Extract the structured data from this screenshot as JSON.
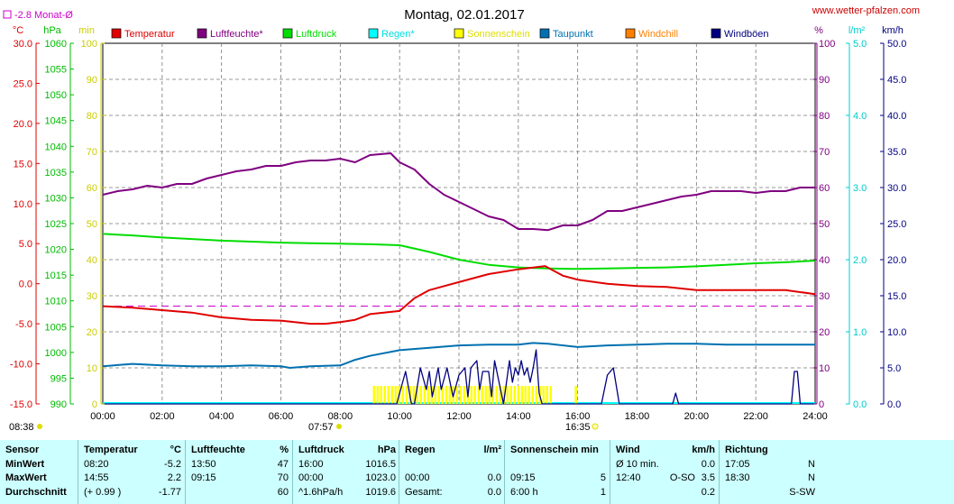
{
  "header": {
    "title": "Montag, 02.01.2017",
    "site": "www.wetter-pfalzen.com",
    "monthly_avg": "-2.8 Monat-Ø"
  },
  "units": {
    "temp": "°C",
    "pressure": "hPa",
    "minutes": "min",
    "percent": "%",
    "rain": "l/m²",
    "wind": "km/h"
  },
  "legend": [
    {
      "label": "Temperatur",
      "color": "#e00000"
    },
    {
      "label": "Luftfeuchte*",
      "color": "#800080"
    },
    {
      "label": "Luftdruck",
      "color": "#00dd00"
    },
    {
      "label": "Regen*",
      "color": "#00ffff"
    },
    {
      "label": "Sonnenschein",
      "color": "#ffff00"
    },
    {
      "label": "Taupunkt",
      "color": "#0070b0"
    },
    {
      "label": "Windchill",
      "color": "#ff8000"
    },
    {
      "label": "Windböen",
      "color": "#000080"
    }
  ],
  "sun_markers": {
    "sunrise_label": "08:38",
    "first_sun": "07:57",
    "sunset_label": "16:35"
  },
  "chart_data": {
    "type": "line",
    "x_ticks": [
      "00:00",
      "02:00",
      "04:00",
      "06:00",
      "08:00",
      "10:00",
      "12:00",
      "14:00",
      "16:00",
      "18:00",
      "20:00",
      "22:00",
      "24:00"
    ],
    "x_range_hours": [
      0,
      24
    ],
    "axes": {
      "temp": {
        "range": [
          -15,
          30
        ],
        "ticks": [
          "30.0",
          "25.0",
          "20.0",
          "15.0",
          "10.0",
          "5.0",
          "0.0",
          "-5.0",
          "-10.0",
          "-15.0"
        ]
      },
      "pressure": {
        "range": [
          990,
          1060
        ],
        "ticks": [
          "1060",
          "1055",
          "1050",
          "1045",
          "1040",
          "1035",
          "1030",
          "1025",
          "1020",
          "1015",
          "1010",
          "1005",
          "1000",
          "995",
          "990"
        ]
      },
      "minutes": {
        "range": [
          0,
          100
        ],
        "ticks": [
          "100",
          "90",
          "80",
          "70",
          "60",
          "50",
          "40",
          "30",
          "20",
          "10",
          "0"
        ]
      },
      "humidity": {
        "range": [
          0,
          100
        ],
        "ticks": [
          "100",
          "90",
          "80",
          "70",
          "60",
          "50",
          "40",
          "30",
          "20",
          "10",
          "0"
        ]
      },
      "rain": {
        "range": [
          0,
          5
        ],
        "ticks": [
          "5.0",
          "4.0",
          "3.0",
          "2.0",
          "1.0",
          "0.0"
        ]
      },
      "wind": {
        "range": [
          0,
          50
        ],
        "ticks": [
          "50.0",
          "45.0",
          "40.0",
          "35.0",
          "30.0",
          "25.0",
          "20.0",
          "15.0",
          "10.0",
          "5.0",
          "0.0"
        ]
      }
    },
    "monthly_avg_temp": -2.8,
    "series": [
      {
        "name": "Luftfeuchte*",
        "axis": "humidity",
        "color": "#800080",
        "points": [
          [
            0,
            58
          ],
          [
            0.5,
            59
          ],
          [
            1,
            59.5
          ],
          [
            1.5,
            60.5
          ],
          [
            2,
            60
          ],
          [
            2.5,
            61
          ],
          [
            3,
            61
          ],
          [
            3.5,
            62.5
          ],
          [
            4,
            63.5
          ],
          [
            4.5,
            64.5
          ],
          [
            5,
            65
          ],
          [
            5.5,
            66
          ],
          [
            6,
            66
          ],
          [
            6.5,
            67
          ],
          [
            7,
            67.5
          ],
          [
            7.5,
            67.5
          ],
          [
            8,
            68
          ],
          [
            8.5,
            67
          ],
          [
            9,
            69
          ],
          [
            9.7,
            69.5
          ],
          [
            10,
            67
          ],
          [
            10.5,
            65
          ],
          [
            11,
            61
          ],
          [
            11.5,
            58
          ],
          [
            12,
            56
          ],
          [
            12.5,
            54
          ],
          [
            13,
            52
          ],
          [
            13.5,
            51
          ],
          [
            14,
            48.5
          ],
          [
            14.5,
            48.5
          ],
          [
            15,
            48.2
          ],
          [
            15.5,
            49.5
          ],
          [
            16,
            49.5
          ],
          [
            16.5,
            51
          ],
          [
            17,
            53.5
          ],
          [
            17.5,
            53.5
          ],
          [
            18,
            54.5
          ],
          [
            18.5,
            55.5
          ],
          [
            19,
            56.5
          ],
          [
            19.5,
            57.5
          ],
          [
            20,
            58
          ],
          [
            20.5,
            59
          ],
          [
            21,
            59
          ],
          [
            21.5,
            59
          ],
          [
            22,
            58.5
          ],
          [
            22.5,
            59
          ],
          [
            23,
            59
          ],
          [
            23.5,
            60
          ],
          [
            24,
            60
          ]
        ]
      },
      {
        "name": "Luftdruck",
        "axis": "pressure",
        "color": "#00dd00",
        "points": [
          [
            0,
            1023
          ],
          [
            1,
            1022.7
          ],
          [
            2,
            1022.3
          ],
          [
            3,
            1022
          ],
          [
            4,
            1021.7
          ],
          [
            5,
            1021.5
          ],
          [
            6,
            1021.3
          ],
          [
            7,
            1021.2
          ],
          [
            8,
            1021.1
          ],
          [
            9,
            1021
          ],
          [
            10,
            1020.8
          ],
          [
            11,
            1019.5
          ],
          [
            12,
            1018
          ],
          [
            13,
            1017
          ],
          [
            14,
            1016.5
          ],
          [
            15,
            1016.3
          ],
          [
            16,
            1016.2
          ],
          [
            17,
            1016.3
          ],
          [
            18,
            1016.4
          ],
          [
            19,
            1016.5
          ],
          [
            20,
            1016.7
          ],
          [
            21,
            1017
          ],
          [
            22,
            1017.3
          ],
          [
            23,
            1017.5
          ],
          [
            24,
            1017.8
          ]
        ]
      },
      {
        "name": "Temperatur",
        "axis": "temp",
        "color": "#e00000",
        "points": [
          [
            0,
            -2.8
          ],
          [
            1,
            -3.0
          ],
          [
            2,
            -3.3
          ],
          [
            3,
            -3.6
          ],
          [
            4,
            -4.2
          ],
          [
            5,
            -4.5
          ],
          [
            6,
            -4.6
          ],
          [
            7,
            -5.0
          ],
          [
            7.5,
            -5.0
          ],
          [
            8,
            -4.8
          ],
          [
            8.5,
            -4.5
          ],
          [
            9,
            -3.8
          ],
          [
            10,
            -3.4
          ],
          [
            10.5,
            -1.8
          ],
          [
            11,
            -0.8
          ],
          [
            12,
            0.2
          ],
          [
            13,
            1.2
          ],
          [
            14,
            1.8
          ],
          [
            14.9,
            2.2
          ],
          [
            15.5,
            1.0
          ],
          [
            16,
            0.5
          ],
          [
            17,
            0.0
          ],
          [
            18,
            -0.3
          ],
          [
            19,
            -0.4
          ],
          [
            20,
            -0.8
          ],
          [
            21,
            -0.8
          ],
          [
            22,
            -0.8
          ],
          [
            23,
            -0.8
          ],
          [
            24,
            -1.3
          ]
        ]
      },
      {
        "name": "Taupunkt",
        "axis": "temp",
        "color": "#0070b0",
        "points": [
          [
            0,
            -10.3
          ],
          [
            1,
            -10.0
          ],
          [
            2,
            -10.2
          ],
          [
            3,
            -10.3
          ],
          [
            4,
            -10.3
          ],
          [
            5,
            -10.2
          ],
          [
            6,
            -10.3
          ],
          [
            6.3,
            -10.5
          ],
          [
            7,
            -10.3
          ],
          [
            8,
            -10.2
          ],
          [
            8.5,
            -9.5
          ],
          [
            9,
            -9.0
          ],
          [
            10,
            -8.3
          ],
          [
            11,
            -8.0
          ],
          [
            12,
            -7.7
          ],
          [
            13,
            -7.6
          ],
          [
            14,
            -7.6
          ],
          [
            14.5,
            -7.4
          ],
          [
            15,
            -7.5
          ],
          [
            16,
            -7.9
          ],
          [
            17,
            -7.7
          ],
          [
            18,
            -7.6
          ],
          [
            19,
            -7.5
          ],
          [
            20,
            -7.5
          ],
          [
            21,
            -7.6
          ],
          [
            22,
            -7.6
          ],
          [
            23,
            -7.6
          ],
          [
            24,
            -7.6
          ]
        ]
      }
    ],
    "sunshine_minutes": {
      "color": "#ffff00",
      "bars": [
        [
          9.1,
          15.1,
          5
        ],
        [
          15.9,
          16.0,
          5
        ]
      ]
    },
    "wind_gusts": {
      "axis": "wind",
      "color": "#000080",
      "points": [
        [
          0,
          0
        ],
        [
          9.9,
          0
        ],
        [
          10.0,
          1.5
        ],
        [
          10.2,
          4.5
        ],
        [
          10.4,
          0
        ],
        [
          10.5,
          0
        ],
        [
          10.7,
          5
        ],
        [
          10.9,
          2
        ],
        [
          11.0,
          4.5
        ],
        [
          11.1,
          1
        ],
        [
          11.3,
          5
        ],
        [
          11.4,
          2
        ],
        [
          11.6,
          5
        ],
        [
          11.8,
          1
        ],
        [
          12.0,
          4
        ],
        [
          12.2,
          5
        ],
        [
          12.3,
          1
        ],
        [
          12.4,
          5
        ],
        [
          12.6,
          6
        ],
        [
          12.7,
          2
        ],
        [
          12.8,
          4.5
        ],
        [
          13.0,
          4.5
        ],
        [
          13.1,
          1
        ],
        [
          13.2,
          6
        ],
        [
          13.4,
          2
        ],
        [
          13.5,
          0
        ],
        [
          13.7,
          6
        ],
        [
          13.8,
          3
        ],
        [
          13.9,
          5
        ],
        [
          14.0,
          4
        ],
        [
          14.1,
          6
        ],
        [
          14.2,
          4
        ],
        [
          14.3,
          5
        ],
        [
          14.4,
          3
        ],
        [
          14.5,
          5
        ],
        [
          14.6,
          7.5
        ],
        [
          14.7,
          1.5
        ],
        [
          14.8,
          0
        ],
        [
          15.0,
          0
        ],
        [
          16.8,
          0
        ],
        [
          17.0,
          4
        ],
        [
          17.2,
          5
        ],
        [
          17.4,
          0
        ],
        [
          19.2,
          0
        ],
        [
          19.3,
          1.5
        ],
        [
          19.4,
          0
        ],
        [
          23.2,
          0
        ],
        [
          23.3,
          4.5
        ],
        [
          23.4,
          4.5
        ],
        [
          23.5,
          0
        ],
        [
          24,
          0
        ]
      ]
    }
  },
  "stats": {
    "sensor": {
      "title": "Sensor",
      "rows": [
        "MinWert",
        "MaxWert",
        "Durchschnitt"
      ]
    },
    "temperatur": {
      "title": "Temperatur",
      "unit": "°C",
      "rows": [
        [
          "08:20",
          "-5.2"
        ],
        [
          "14:55",
          "2.2"
        ],
        [
          "(+ 0.99 )",
          "-1.77"
        ]
      ]
    },
    "luftfeuchte": {
      "title": "Luftfeuchte",
      "unit": "%",
      "rows": [
        [
          "13:50",
          "47"
        ],
        [
          "09:15",
          "70"
        ],
        [
          "",
          "60"
        ]
      ]
    },
    "luftdruck": {
      "title": "Luftdruck",
      "unit": "hPa",
      "rows": [
        [
          "16:00",
          "1016.5"
        ],
        [
          "00:00",
          "1023.0"
        ],
        [
          "^1.6hPa/h",
          "1019.6"
        ]
      ]
    },
    "regen": {
      "title": "Regen",
      "unit": "l/m²",
      "rows": [
        [
          "",
          ""
        ],
        [
          "00:00",
          "0.0"
        ],
        [
          "Gesamt:",
          "0.0"
        ]
      ]
    },
    "sonnenschein": {
      "title": "Sonnenschein min",
      "rows": [
        [
          "",
          ""
        ],
        [
          "09:15",
          "5"
        ],
        [
          "6:00 h",
          "1"
        ]
      ]
    },
    "wind": {
      "title": "Wind",
      "unit": "km/h",
      "rows": [
        [
          "Ø 10 min.",
          "",
          "0.0"
        ],
        [
          "12:40",
          "O-SO",
          "3.5"
        ],
        [
          "",
          "",
          "0.2"
        ]
      ]
    },
    "richtung": {
      "title": "Richtung",
      "rows": [
        [
          "17:05",
          "N"
        ],
        [
          "18:30",
          "N"
        ],
        [
          "",
          "S-SW"
        ]
      ]
    }
  }
}
